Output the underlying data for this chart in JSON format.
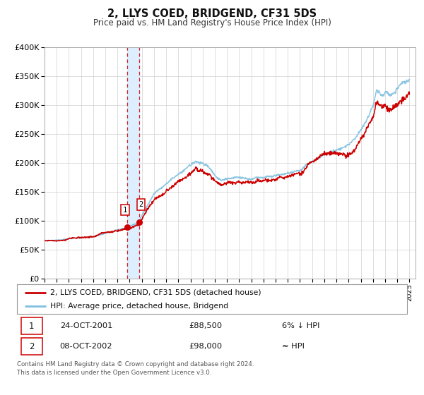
{
  "title": "2, LLYS COED, BRIDGEND, CF31 5DS",
  "subtitle": "Price paid vs. HM Land Registry's House Price Index (HPI)",
  "ylim": [
    0,
    400000
  ],
  "yticks": [
    0,
    50000,
    100000,
    150000,
    200000,
    250000,
    300000,
    350000,
    400000
  ],
  "ytick_labels": [
    "£0",
    "£50K",
    "£100K",
    "£150K",
    "£200K",
    "£250K",
    "£300K",
    "£350K",
    "£400K"
  ],
  "xlim_start": 1995.0,
  "xlim_end": 2025.5,
  "xtick_years": [
    1995,
    1996,
    1997,
    1998,
    1999,
    2000,
    2001,
    2002,
    2003,
    2004,
    2005,
    2006,
    2007,
    2008,
    2009,
    2010,
    2011,
    2012,
    2013,
    2014,
    2015,
    2016,
    2017,
    2018,
    2019,
    2020,
    2021,
    2022,
    2023,
    2024,
    2025
  ],
  "sale1_date": 2001.81,
  "sale1_price": 88500,
  "sale2_date": 2002.77,
  "sale2_price": 98000,
  "sale1_text": "24-OCT-2001",
  "sale1_price_text": "£88,500",
  "sale1_hpi_text": "6% ↓ HPI",
  "sale2_text": "08-OCT-2002",
  "sale2_price_text": "£98,000",
  "sale2_hpi_text": "≈ HPI",
  "legend_label1": "2, LLYS COED, BRIDGEND, CF31 5DS (detached house)",
  "legend_label2": "HPI: Average price, detached house, Bridgend",
  "footer": "Contains HM Land Registry data © Crown copyright and database right 2024.\nThis data is licensed under the Open Government Licence v3.0.",
  "hpi_color": "#7fbfdf",
  "price_color": "#cc0000",
  "grid_color": "#d0d0d0",
  "shade_color": "#ddeeff"
}
